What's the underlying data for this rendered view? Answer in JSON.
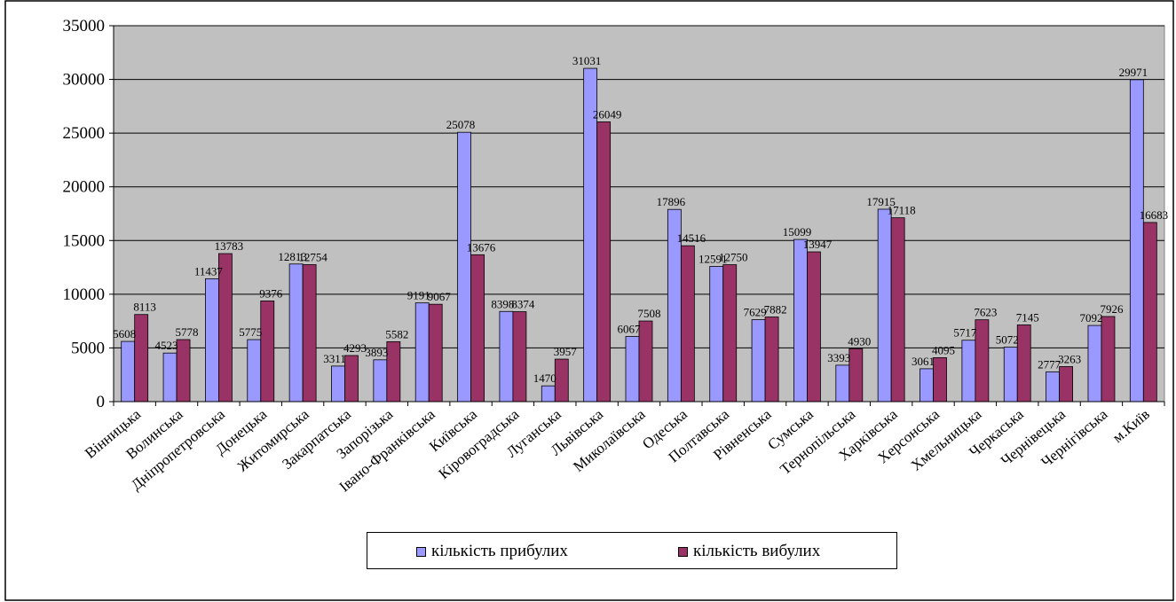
{
  "chart_data": {
    "type": "bar",
    "title": "",
    "xlabel": "",
    "ylabel": "",
    "ylim": [
      0,
      35000
    ],
    "yticks": [
      0,
      5000,
      10000,
      15000,
      20000,
      25000,
      30000,
      35000
    ],
    "grid": true,
    "legend_position": "bottom",
    "categories": [
      "Вінницька",
      "Волинська",
      "Дніпропетровська",
      "Донецька",
      "Житомирська",
      "Закарпатська",
      "Запорізька",
      "Івано-Франківська",
      "Київська",
      "Кіровоградська",
      "Луганська",
      "Львівська",
      "Миколаївська",
      "Одеська",
      "Полтавська",
      "Рівненська",
      "Сумська",
      "Тернопільська",
      "Харківська",
      "Херсонська",
      "Хмельницька",
      "Черкаська",
      "Чернівецька",
      "Чернігівська",
      "м.Київ"
    ],
    "series": [
      {
        "name": "кількість прибулих",
        "color": "#9999ff",
        "values": [
          5608,
          4523,
          11437,
          5775,
          12813,
          3311,
          3893,
          9191,
          25078,
          8398,
          1470,
          31031,
          6067,
          17896,
          12591,
          7629,
          15099,
          3393,
          17915,
          3061,
          5717,
          5072,
          2777,
          7092,
          29971
        ]
      },
      {
        "name": "кількість вибулих",
        "color": "#993366",
        "values": [
          8113,
          5778,
          13783,
          9376,
          12754,
          4293,
          5582,
          9067,
          13676,
          8374,
          3957,
          26049,
          7508,
          14516,
          12750,
          7882,
          13947,
          4930,
          17118,
          4095,
          7623,
          7145,
          3263,
          7926,
          16683
        ]
      }
    ],
    "plot_background": "#c0c0c0"
  }
}
